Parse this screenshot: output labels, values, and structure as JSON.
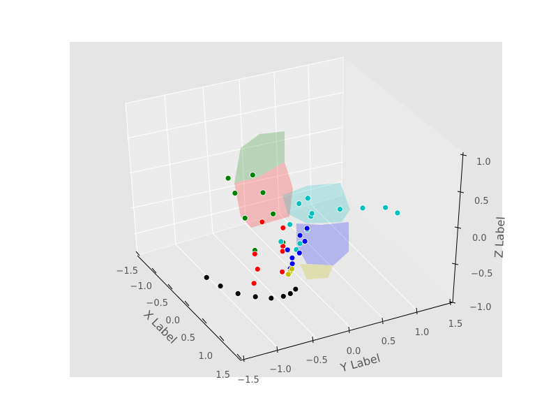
{
  "chart_data": {
    "type": "scatter",
    "projection": "3d",
    "xlabel": "X Label",
    "ylabel": "Y Label",
    "zlabel": "Z Label",
    "xlim": [
      -1.5,
      1.5
    ],
    "ylim": [
      -1.5,
      1.5
    ],
    "zlim": [
      -1.0,
      1.0
    ],
    "x_ticks": [
      "−1.5",
      "−1.0",
      "−0.5",
      "0.0",
      "0.5",
      "1.0",
      "1.5"
    ],
    "y_ticks": [
      "−1.5",
      "−1.0",
      "−0.5",
      "0.0",
      "0.5",
      "1.0",
      "1.5"
    ],
    "z_ticks": [
      "−1.0",
      "−0.5",
      "0.0",
      "0.5",
      "1.0"
    ],
    "grid": true,
    "legend": "none",
    "colors": {
      "panel_background": "#e5e5e5",
      "pane": "#ececec",
      "grid": "#ffffff",
      "marker_edge": "#ffffff"
    },
    "series": [
      {
        "color": "#000000",
        "description": "arc of points",
        "points": [
          [
            -0.55,
            -1.45,
            0.05
          ],
          [
            -0.75,
            -1.35,
            0.0
          ],
          [
            -0.95,
            -1.2,
            -0.05
          ],
          [
            -1.05,
            -1.0,
            -0.1
          ],
          [
            -1.1,
            -0.8,
            -0.15
          ],
          [
            -1.05,
            -0.6,
            -0.2
          ],
          [
            -0.95,
            -0.45,
            -0.25
          ],
          [
            -0.8,
            -0.3,
            -0.3
          ]
        ]
      },
      {
        "color": "#008000",
        "description": "surface patch",
        "points": [
          [
            -0.9,
            -0.95,
            0.45
          ],
          [
            -0.6,
            -0.95,
            0.75
          ],
          [
            -0.3,
            -0.95,
            0.95
          ],
          [
            0.0,
            -0.9,
            1.0
          ],
          [
            -0.9,
            -0.55,
            0.45
          ],
          [
            -0.6,
            -0.55,
            0.7
          ],
          [
            -0.3,
            -0.55,
            0.85
          ],
          [
            0.0,
            -0.55,
            0.95
          ]
        ]
      },
      {
        "color": "#ff0000",
        "description": "surface patch",
        "points": [
          [
            -0.9,
            -0.95,
            0.4
          ],
          [
            -0.9,
            -0.95,
            0.0
          ],
          [
            -0.9,
            -0.55,
            0.4
          ],
          [
            -0.9,
            -0.55,
            0.05
          ],
          [
            -0.6,
            -0.4,
            0.15
          ],
          [
            -0.4,
            -0.3,
            0.35
          ],
          [
            -0.3,
            -0.55,
            0.45
          ],
          [
            -0.6,
            -0.75,
            0.0
          ]
        ]
      },
      {
        "color": "#00bfbf",
        "description": "surface patch and arc",
        "points": [
          [
            -0.45,
            -0.35,
            0.2
          ],
          [
            -0.2,
            -0.1,
            0.25
          ],
          [
            0.05,
            0.15,
            0.35
          ],
          [
            0.2,
            0.35,
            0.3
          ],
          [
            -0.4,
            -0.1,
            0.0
          ],
          [
            -0.1,
            0.2,
            0.05
          ],
          [
            0.1,
            0.35,
            0.1
          ],
          [
            -0.2,
            0.05,
            -0.05
          ],
          [
            -1.0,
            -0.2,
            0.8
          ],
          [
            -1.0,
            0.2,
            0.75
          ],
          [
            -0.95,
            0.55,
            0.65
          ],
          [
            -1.0,
            0.85,
            0.6
          ],
          [
            -0.95,
            1.05,
            0.45
          ]
        ]
      },
      {
        "color": "#0000ff",
        "description": "surface patch",
        "points": [
          [
            -0.35,
            -0.2,
            0.0
          ],
          [
            -0.1,
            0.1,
            0.0
          ],
          [
            0.1,
            0.3,
            -0.05
          ],
          [
            -0.2,
            -0.05,
            -0.3
          ],
          [
            0.0,
            0.15,
            -0.3
          ],
          [
            0.15,
            0.3,
            -0.25
          ],
          [
            -0.05,
            0.0,
            -0.45
          ],
          [
            0.1,
            0.1,
            -0.4
          ]
        ]
      },
      {
        "color": "#bfbf00",
        "description": "small patch",
        "points": [
          [
            -0.05,
            0.0,
            -0.5
          ],
          [
            0.05,
            0.05,
            -0.55
          ],
          [
            0.1,
            0.1,
            -0.55
          ],
          [
            0.0,
            0.0,
            -0.55
          ]
        ]
      }
    ]
  }
}
